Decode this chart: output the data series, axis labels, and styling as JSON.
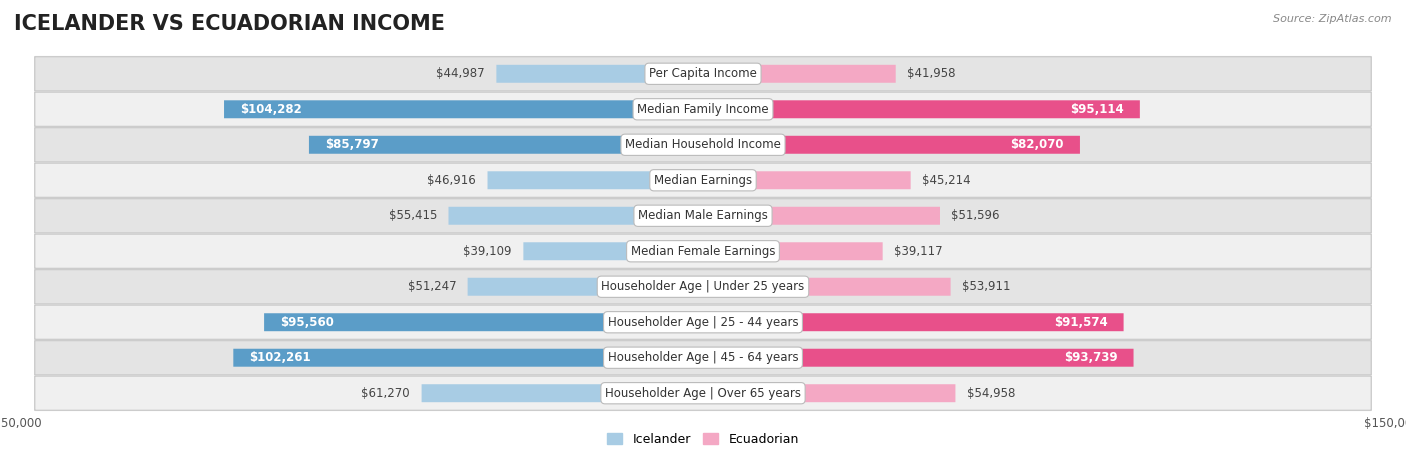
{
  "title": "ICELANDER VS ECUADORIAN INCOME",
  "source": "Source: ZipAtlas.com",
  "categories": [
    "Per Capita Income",
    "Median Family Income",
    "Median Household Income",
    "Median Earnings",
    "Median Male Earnings",
    "Median Female Earnings",
    "Householder Age | Under 25 years",
    "Householder Age | 25 - 44 years",
    "Householder Age | 45 - 64 years",
    "Householder Age | Over 65 years"
  ],
  "icelander_values": [
    44987,
    104282,
    85797,
    46916,
    55415,
    39109,
    51247,
    95560,
    102261,
    61270
  ],
  "ecuadorian_values": [
    41958,
    95114,
    82070,
    45214,
    51596,
    39117,
    53911,
    91574,
    93739,
    54958
  ],
  "icelander_labels": [
    "$44,987",
    "$104,282",
    "$85,797",
    "$46,916",
    "$55,415",
    "$39,109",
    "$51,247",
    "$95,560",
    "$102,261",
    "$61,270"
  ],
  "ecuadorian_labels": [
    "$41,958",
    "$95,114",
    "$82,070",
    "$45,214",
    "$51,596",
    "$39,117",
    "$53,911",
    "$91,574",
    "$93,739",
    "$54,958"
  ],
  "icelander_color_light": "#a8cce4",
  "icelander_color_dark": "#5b9dc8",
  "ecuadorian_color_light": "#f4a8c4",
  "ecuadorian_color_dark": "#e8508a",
  "inside_threshold": 65000,
  "max_value": 150000,
  "row_bg_light": "#f0f0f0",
  "row_bg_dark": "#e4e4e4",
  "legend_icelander": "Icelander",
  "legend_ecuadorian": "Ecuadorian",
  "title_fontsize": 15,
  "label_fontsize": 8.5,
  "category_fontsize": 8.5
}
